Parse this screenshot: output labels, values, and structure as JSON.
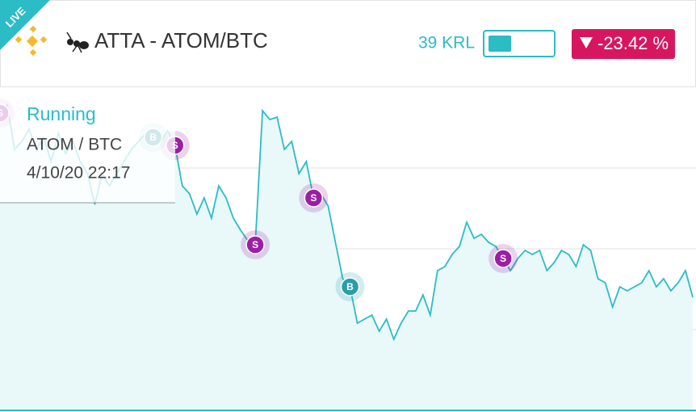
{
  "header": {
    "badge": "LIVE",
    "title": "ATTA - ATOM/BTC",
    "balance": "39 KRL",
    "change": "-23.42 %"
  },
  "info": {
    "status": "Running",
    "pair": "ATOM / BTC",
    "date": "4/10/20 22:17"
  },
  "chart_data": {
    "type": "line",
    "ylim": [
      0,
      100
    ],
    "yticks": [
      25,
      50,
      75
    ],
    "grid": true,
    "color": "#2bbcc6",
    "values": [
      92,
      94.5,
      80.75,
      83.25,
      87,
      80.75,
      84.5,
      77,
      85.75,
      79.5,
      83.25,
      77,
      73.25,
      63.75,
      73.25,
      69.5,
      73.25,
      77,
      80.75,
      83.25,
      85.75,
      84.5,
      83.25,
      86.5,
      82,
      69.5,
      67,
      60.75,
      65.75,
      59.5,
      69.5,
      65.75,
      59.5,
      55.75,
      52.5,
      51.25,
      92.75,
      90,
      90.75,
      80.75,
      83.25,
      73.25,
      77,
      65.75,
      67,
      63.25,
      52,
      40.75,
      38.25,
      27,
      28.25,
      29.5,
      24.5,
      28.25,
      22,
      27,
      30.75,
      30.75,
      35.75,
      29.5,
      43.25,
      44.5,
      48.25,
      50.75,
      58.25,
      53.25,
      54.5,
      52,
      50.75,
      47,
      43.25,
      47,
      49.5,
      48.25,
      49.5,
      43.25,
      45.75,
      49.5,
      48.25,
      44.5,
      51.25,
      49.5,
      40.75,
      39.5,
      32,
      38.25,
      37,
      38.25,
      39.5,
      43.25,
      38.25,
      40.75,
      37,
      39.5,
      43.25,
      35
    ],
    "trades": [
      {
        "label": "S",
        "index": 0
      },
      {
        "label": "B",
        "index": 21
      },
      {
        "label": "S",
        "index": 24
      },
      {
        "label": "S",
        "index": 35
      },
      {
        "label": "S",
        "index": 43
      },
      {
        "label": "B",
        "index": 48
      },
      {
        "label": "S",
        "index": 69
      }
    ]
  }
}
